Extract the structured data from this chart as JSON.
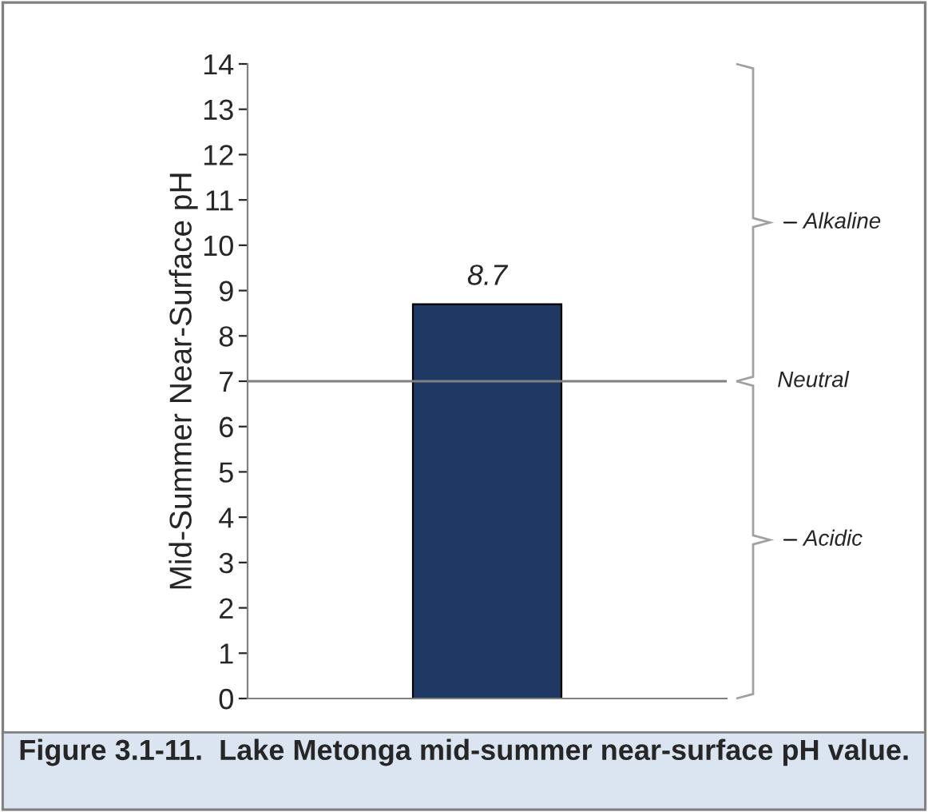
{
  "chart_data": {
    "type": "bar",
    "ylabel": "Mid-Summer Near-Surface pH",
    "categories": [
      null
    ],
    "values": [
      8.7
    ],
    "color": "#1f3864",
    "ylim": [
      0,
      14
    ],
    "yticks": [
      0,
      1,
      2,
      3,
      4,
      5,
      6,
      7,
      8,
      9,
      10,
      11,
      12,
      13,
      14
    ],
    "data_labels": true,
    "ref_lines": [
      {
        "axis": "y",
        "value": 7,
        "label": "Neutral",
        "color": "#808080"
      }
    ],
    "annotations": [
      "Alkaline",
      "Acidic",
      "Figure 3.1-11.  Lake Metonga mid-summer near-surface pH value."
    ]
  }
}
